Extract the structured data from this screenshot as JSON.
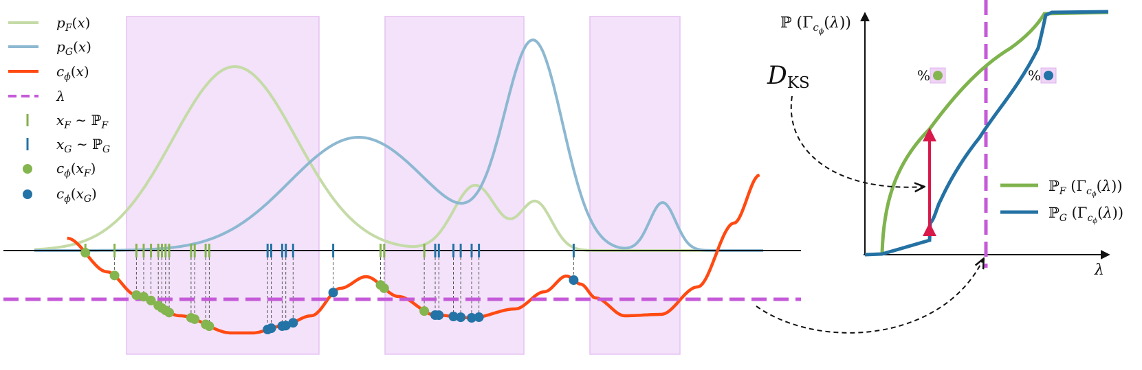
{
  "legend": {
    "items": [
      {
        "key": "pF",
        "label": "p_F(x)",
        "color": "#c5dba7",
        "kind": "line"
      },
      {
        "key": "pG",
        "label": "p_G(x)",
        "color": "#8db8d1",
        "kind": "line"
      },
      {
        "key": "c",
        "label": "c_ϕ(x)",
        "color": "#ff4a12",
        "kind": "line"
      },
      {
        "key": "lambda",
        "label": "λ",
        "color": "#c55ad8",
        "kind": "dashed"
      },
      {
        "key": "xF",
        "label": "x_F ∼ ℙ_F",
        "color": "#85ad4f",
        "kind": "tick"
      },
      {
        "key": "xG",
        "label": "x_G ∼ ℙ_G",
        "color": "#2473a6",
        "kind": "tick"
      },
      {
        "key": "cF",
        "label": "c_ϕ(x_F)",
        "color": "#85b54f",
        "kind": "dot"
      },
      {
        "key": "cG",
        "label": "c_ϕ(x_G)",
        "color": "#2473a6",
        "kind": "dot"
      }
    ]
  },
  "left_panel": {
    "samples_F": [
      0.07,
      0.11,
      0.14,
      0.15,
      0.16,
      0.17,
      0.175,
      0.18,
      0.185,
      0.215,
      0.22,
      0.235,
      0.24,
      0.475,
      0.48,
      0.535
    ],
    "samples_G": [
      0.32,
      0.325,
      0.34,
      0.345,
      0.355,
      0.41,
      0.55,
      0.555,
      0.575,
      0.585,
      0.6,
      0.61,
      0.74
    ]
  },
  "cdf_panel": {
    "y_label": "ℙ(Γ_cϕ(λ))",
    "x_label": "λ",
    "ks_label": "D_KS",
    "percent_symbol": "%",
    "legend": [
      {
        "label": "ℙ_F(Γ_cϕ(λ))",
        "color": "#7fb34d"
      },
      {
        "label": "ℙ_G(Γ_cϕ(λ))",
        "color": "#2471a3"
      }
    ]
  },
  "colors": {
    "pF": "#c5dba7",
    "pG": "#8db8d1",
    "cost": "#ff4a12",
    "lambda": "#c55ad8",
    "region_fill": "#f3e2fa",
    "region_stroke": "#e6c2f2",
    "F": "#85b54f",
    "G": "#2473a6",
    "ks_arrow": "#d8194a",
    "cdfF": "#7fb34d",
    "cdfG": "#2471a3"
  }
}
